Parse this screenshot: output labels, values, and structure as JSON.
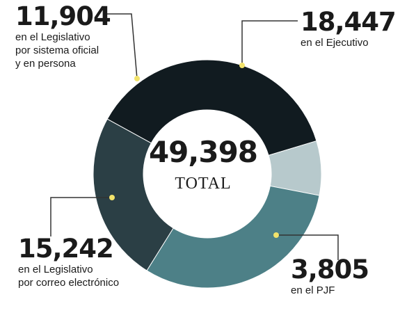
{
  "chart_data": {
    "type": "pie",
    "total_value": "49,398",
    "total_label": "TOTAL",
    "slices": [
      {
        "value": 11904,
        "value_text": "11,904",
        "label": "en el Legislativo\npor sistema oficial\ny en persona",
        "color": "#2b3f45"
      },
      {
        "value": 18447,
        "value_text": "18,447",
        "label": "en el Ejecutivo",
        "color": "#111b20"
      },
      {
        "value": 3805,
        "value_text": "3,805",
        "label": "en el PJF",
        "color": "#b7c9cc"
      },
      {
        "value": 15242,
        "value_text": "15,242",
        "label": "en el Legislativo\npor correo electrónico",
        "color": "#4d8087"
      }
    ]
  },
  "colors": {
    "marker_dot": "#f2e36b",
    "leader_line": "#333333"
  }
}
